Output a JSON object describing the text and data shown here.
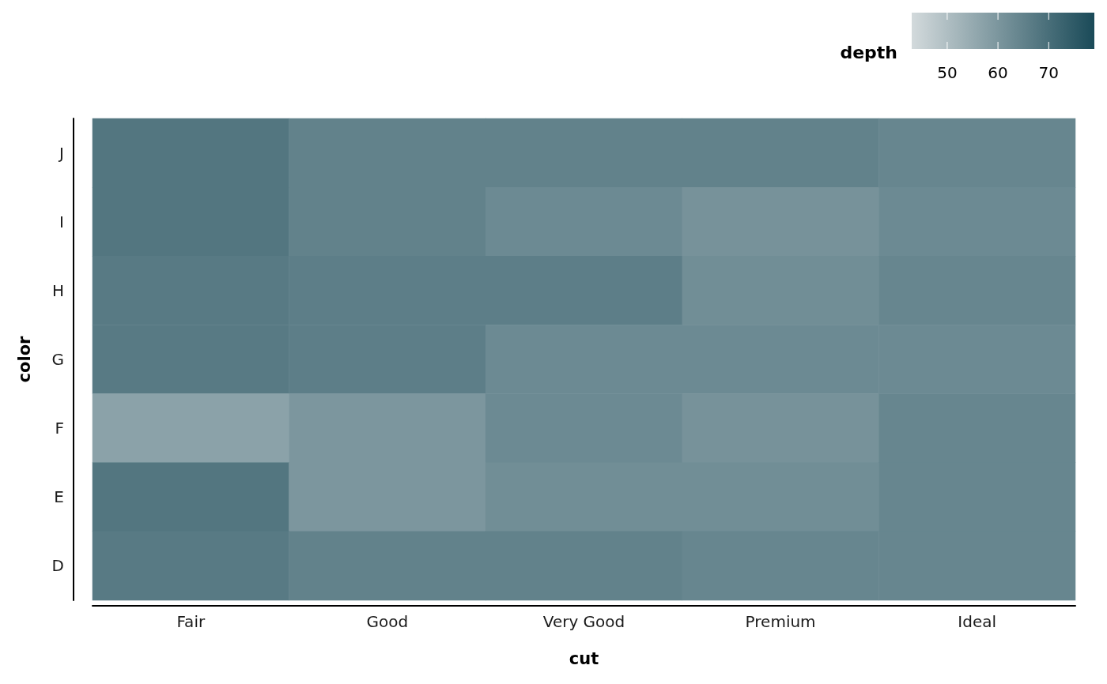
{
  "chart_data": {
    "type": "heatmap",
    "xlabel": "cut",
    "ylabel": "color",
    "clabel": "depth",
    "categories": [
      "Fair",
      "Good",
      "Very Good",
      "Premium",
      "Ideal"
    ],
    "y_categories": [
      "J",
      "I",
      "H",
      "G",
      "F",
      "E",
      "D"
    ],
    "cells": [
      [
        68,
        65,
        65,
        65,
        64
      ],
      [
        68,
        65,
        63,
        61,
        63
      ],
      [
        67,
        66,
        66,
        62,
        64
      ],
      [
        67,
        66,
        63,
        63,
        63
      ],
      [
        57,
        60,
        63,
        61,
        64
      ],
      [
        68,
        60,
        62,
        62,
        64
      ],
      [
        67,
        65,
        65,
        64,
        64
      ]
    ],
    "clim": [
      43,
      79
    ],
    "cticks": [
      50,
      60,
      70
    ],
    "grid": false
  }
}
